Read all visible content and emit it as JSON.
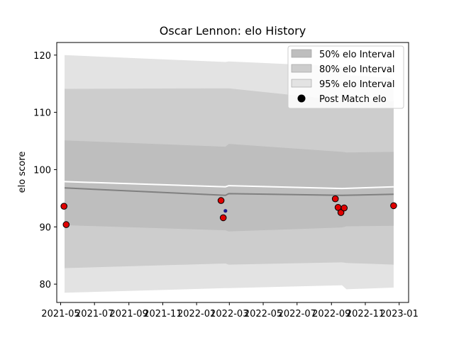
{
  "chart_data": {
    "type": "line",
    "title": "Oscar Lennon: elo History",
    "xlabel": "",
    "ylabel": "elo score",
    "x_type": "date",
    "xlim": [
      "2021-04-24",
      "2023-01-18"
    ],
    "ylim": [
      76.8,
      122.2
    ],
    "x_ticks": [
      "2021-05",
      "2021-07",
      "2021-09",
      "2021-11",
      "2022-01",
      "2022-03",
      "2022-05",
      "2022-07",
      "2022-09",
      "2022-11",
      "2023-01"
    ],
    "y_ticks": [
      80,
      90,
      100,
      110,
      120
    ],
    "grid": false,
    "legend_position": "top-right",
    "band_dates": [
      "2021-05-08",
      "2022-02-22",
      "2022-02-28",
      "2022-09-20",
      "2022-09-28",
      "2022-12-22"
    ],
    "bands": [
      {
        "name": "95% elo Interval",
        "color": "#e3e3e3",
        "lower": [
          78.5,
          79.3,
          79.3,
          79.8,
          79.1,
          79.4
        ],
        "upper": [
          120.0,
          118.8,
          118.9,
          118.0,
          116.5,
          116.0
        ]
      },
      {
        "name": "80% elo Interval",
        "color": "#cdcdcd",
        "lower": [
          82.8,
          83.6,
          83.4,
          83.8,
          83.7,
          83.4
        ],
        "upper": [
          114.1,
          114.2,
          114.2,
          112.1,
          112.1,
          112.0
        ]
      },
      {
        "name": "50% elo Interval",
        "color": "#bebebe",
        "lower": [
          90.3,
          89.4,
          89.2,
          89.9,
          90.1,
          90.2
        ],
        "upper": [
          105.1,
          104.0,
          104.5,
          103.1,
          103.0,
          103.1
        ]
      }
    ],
    "series": [
      {
        "line": "mean",
        "color": "#ffffff",
        "x": [
          "2021-05-08",
          "2022-02-22",
          "2022-02-28",
          "2022-09-20",
          "2022-12-22"
        ],
        "y": [
          97.9,
          97.0,
          97.2,
          96.7,
          97.0
        ]
      },
      {
        "line": "median",
        "color": "#808080",
        "x": [
          "2021-05-08",
          "2022-02-22",
          "2022-02-28",
          "2022-09-20",
          "2022-12-22"
        ],
        "y": [
          96.8,
          95.5,
          95.8,
          95.5,
          95.7
        ]
      },
      {
        "name": "Post Match elo",
        "color": "#e00000",
        "x": [
          "2021-05-07",
          "2021-05-11",
          "2022-02-14",
          "2022-02-18",
          "2022-09-08",
          "2022-09-13",
          "2022-09-18",
          "2022-09-24",
          "2022-12-22"
        ],
        "y": [
          93.6,
          90.4,
          94.6,
          91.6,
          94.9,
          93.4,
          92.5,
          93.3,
          93.7
        ]
      },
      {
        "marker": "small",
        "color": "#1a1a8c",
        "x": [
          "2022-02-22"
        ],
        "y": [
          92.8
        ]
      }
    ],
    "legend": [
      {
        "label": "50% elo Interval",
        "kind": "patch",
        "color": "#bebebe"
      },
      {
        "label": "80% elo Interval",
        "kind": "patch",
        "color": "#cdcdcd"
      },
      {
        "label": "95% elo Interval",
        "kind": "patch",
        "color": "#e3e3e3"
      },
      {
        "label": "Post Match elo",
        "kind": "marker",
        "color": "#000000"
      }
    ]
  }
}
